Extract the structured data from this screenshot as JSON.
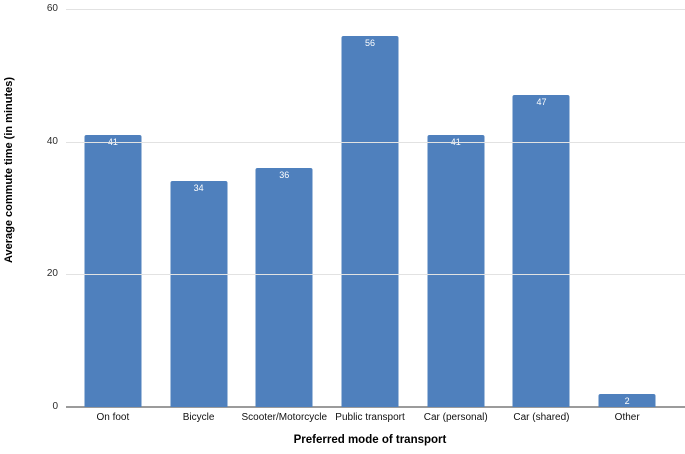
{
  "chart_data": {
    "type": "bar",
    "title": "",
    "categories": [
      "On foot",
      "Bicycle",
      "Scooter/Motorcycle",
      "Public transport",
      "Car (personal)",
      "Car (shared)",
      "Other"
    ],
    "values": [
      41,
      34,
      36,
      56,
      41,
      47,
      2
    ],
    "xlabel": "Preferred mode of transport",
    "ylabel": "Average commute time (in minutes)",
    "ylim": [
      0,
      60
    ],
    "yticks": [
      0,
      20,
      40,
      60
    ],
    "grid": "horizontal",
    "legend_position": "none",
    "colors": {
      "bar": "#4f80bd",
      "value_label": "#ffffff",
      "gridline": "#e2e2e2",
      "axis_line": "#9b9b9b",
      "tick_label": "#2b2b2b",
      "axis_title": "#000000"
    }
  }
}
